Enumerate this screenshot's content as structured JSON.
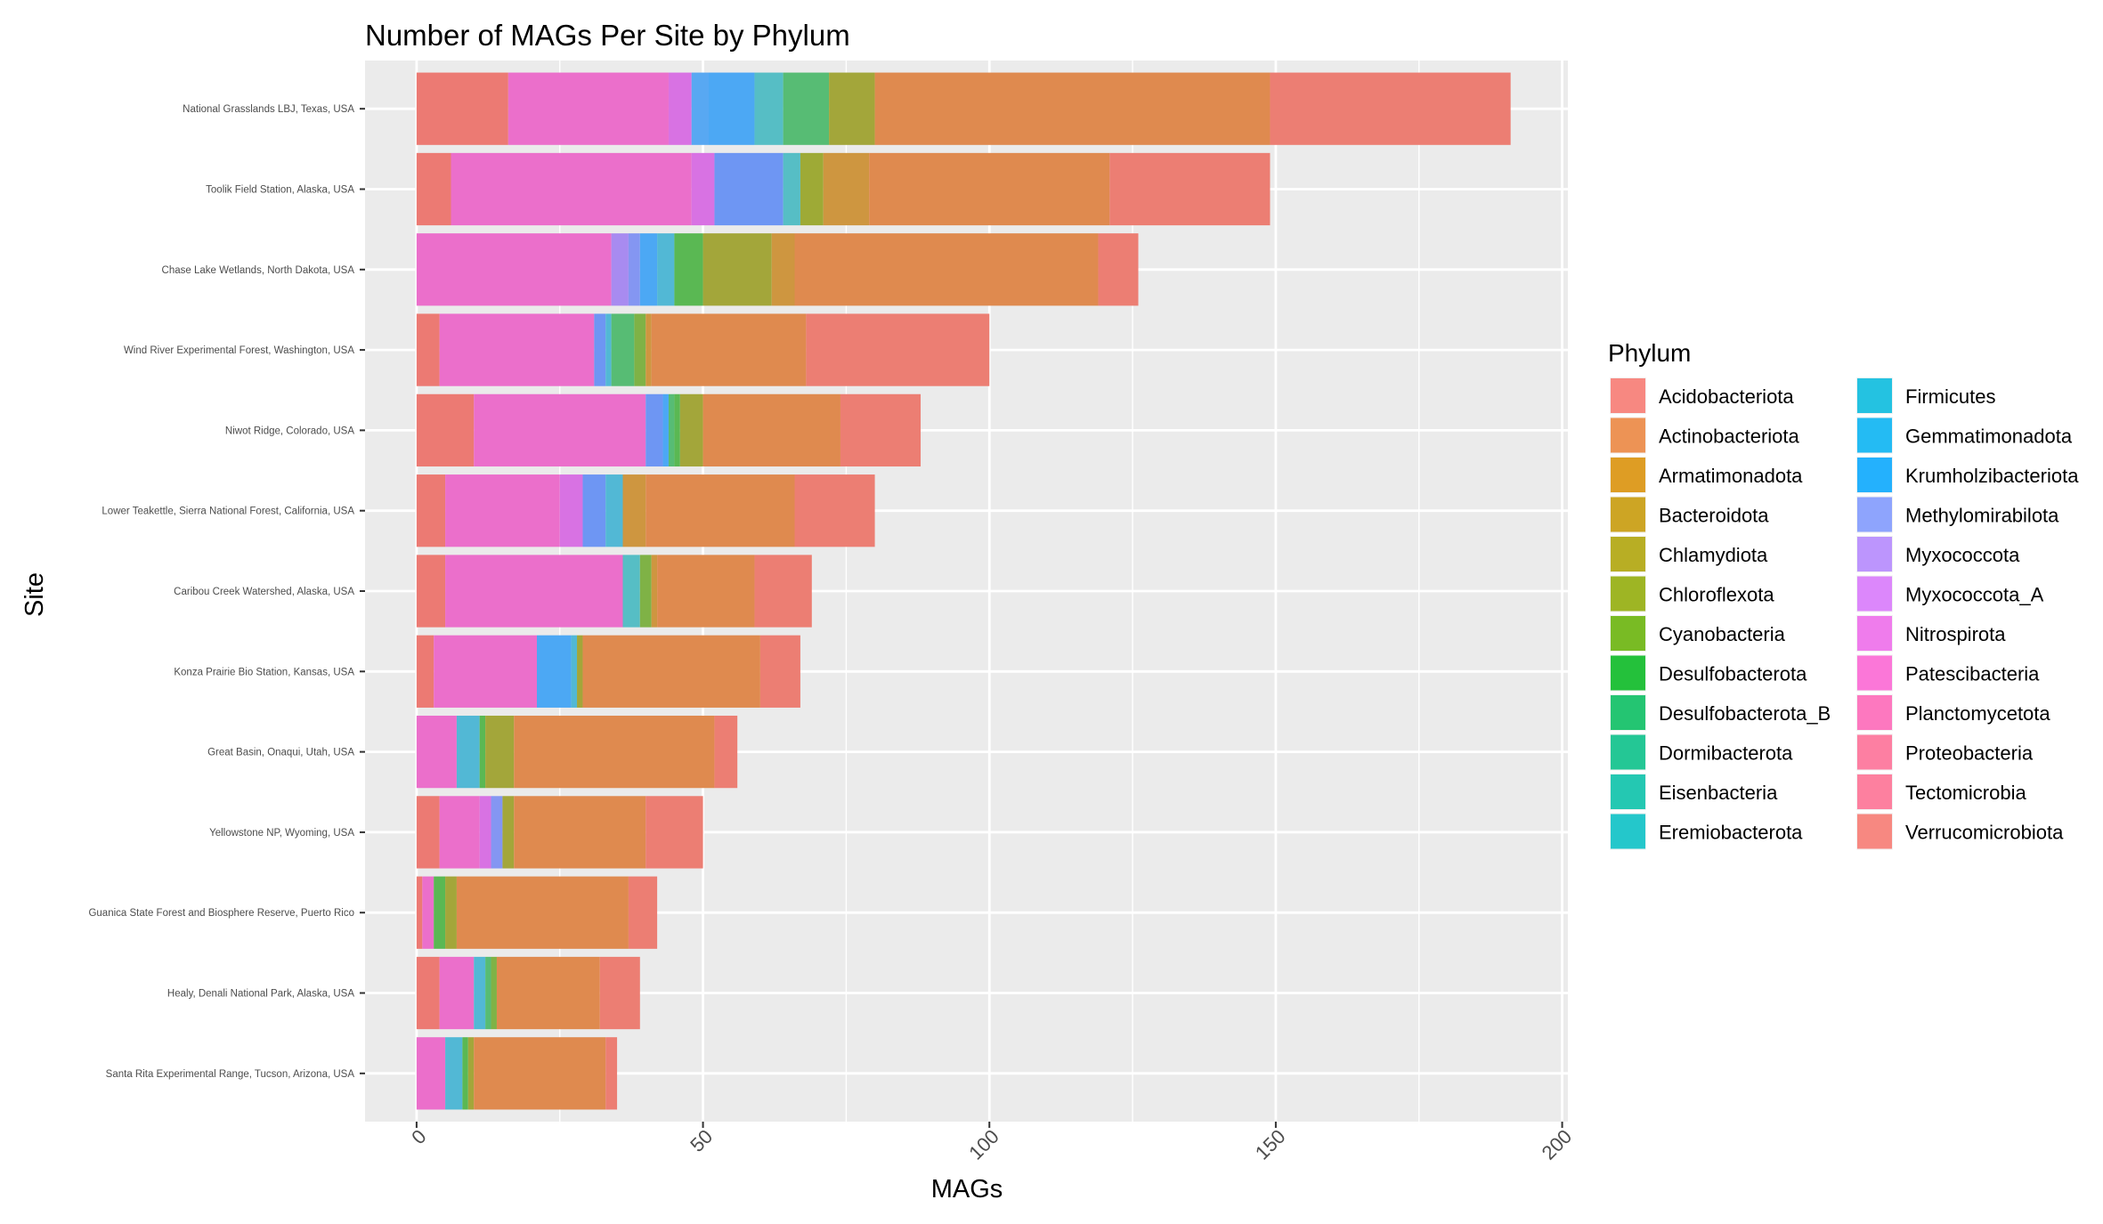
{
  "chart_data": {
    "type": "bar",
    "orientation": "horizontal",
    "stacked": true,
    "title": "Number of MAGs Per Site by Phylum",
    "xlabel": "MAGs",
    "ylabel": "Site",
    "xlim": [
      -9,
      201
    ],
    "x_ticks": [
      "0",
      "50",
      "100",
      "150",
      "200"
    ],
    "grid": true,
    "legend_position": "right",
    "legend": {
      "title": "Phylum",
      "items": [
        {
          "name": "Acidobacteriota",
          "color": "#F8766D"
        },
        {
          "name": "Actinobacteriota",
          "color": "#EC8239"
        },
        {
          "name": "Armatimonadota",
          "color": "#DB8E00"
        },
        {
          "name": "Bacteroidota",
          "color": "#C79800"
        },
        {
          "name": "Chlamydiota",
          "color": "#AEA200"
        },
        {
          "name": "Chloroflexota",
          "color": "#8FAA00"
        },
        {
          "name": "Cyanobacteria",
          "color": "#64B200"
        },
        {
          "name": "Desulfobacterota",
          "color": "#00B81B"
        },
        {
          "name": "Desulfobacterota_B",
          "color": "#00BD5C"
        },
        {
          "name": "Dormibacterota",
          "color": "#00C085"
        },
        {
          "name": "Eisenbacteria",
          "color": "#00C1A7"
        },
        {
          "name": "Eremiobacterota",
          "color": "#00BFC4"
        },
        {
          "name": "Firmicutes",
          "color": "#00BADE"
        },
        {
          "name": "Gemmatimonadota",
          "color": "#00B2F3"
        },
        {
          "name": "Krumholzibacteriota",
          "color": "#00A6FF"
        },
        {
          "name": "Methylomirabilota",
          "color": "#7C96FF"
        },
        {
          "name": "Myxococcota",
          "color": "#B385FF"
        },
        {
          "name": "Myxococcota_A",
          "color": "#D874FD"
        },
        {
          "name": "Nitrospirota",
          "color": "#EF67EB"
        },
        {
          "name": "Patescibacteria",
          "color": "#FD61D3"
        },
        {
          "name": "Planctomycetota",
          "color": "#FF63B6"
        },
        {
          "name": "Proteobacteria",
          "color": "#FF6B94"
        },
        {
          "name": "Tectomicrobia",
          "color": "#FF6C91"
        },
        {
          "name": "Verrucomicrobiota",
          "color": "#F8766D"
        }
      ]
    },
    "sites": [
      {
        "label": "National Grasslands LBJ, Texas, USA",
        "segments": [
          [
            0,
            16,
            "#EC7A73"
          ],
          [
            16,
            44,
            "#EB6FCB"
          ],
          [
            44,
            48,
            "#D872E3"
          ],
          [
            48,
            51,
            "#58A8F2"
          ],
          [
            51,
            59,
            "#4CA8F4"
          ],
          [
            59,
            64,
            "#56BEC5"
          ],
          [
            64,
            72,
            "#57BC74"
          ],
          [
            72,
            80,
            "#A3A63A"
          ],
          [
            80,
            149,
            "#DF8A4F"
          ],
          [
            149,
            191,
            "#EC7E73"
          ]
        ]
      },
      {
        "label": "Toolik Field Station, Alaska, USA",
        "segments": [
          [
            0,
            6,
            "#EC7A73"
          ],
          [
            6,
            48,
            "#EB6FCB"
          ],
          [
            48,
            52,
            "#D872E3"
          ],
          [
            52,
            64,
            "#6E96F3"
          ],
          [
            64,
            67,
            "#56BEC5"
          ],
          [
            67,
            71,
            "#9EAA36"
          ],
          [
            71,
            79,
            "#CE9640"
          ],
          [
            79,
            121,
            "#DF8A4F"
          ],
          [
            121,
            149,
            "#EC7E73"
          ]
        ]
      },
      {
        "label": "Chase Lake Wetlands, North Dakota, USA",
        "segments": [
          [
            0,
            34,
            "#EB6FCB"
          ],
          [
            34,
            37,
            "#A88BF0"
          ],
          [
            37,
            39,
            "#8496F2"
          ],
          [
            39,
            42,
            "#4CA8F4"
          ],
          [
            42,
            45,
            "#52B8D5"
          ],
          [
            45,
            50,
            "#5AB853"
          ],
          [
            50,
            62,
            "#A3A63A"
          ],
          [
            62,
            66,
            "#CE9640"
          ],
          [
            66,
            119,
            "#DF8A4F"
          ],
          [
            119,
            126,
            "#EC7E73"
          ]
        ]
      },
      {
        "label": "Wind River Experimental Forest, Washington, USA",
        "segments": [
          [
            0,
            4,
            "#EC7A73"
          ],
          [
            4,
            31,
            "#EB6FCB"
          ],
          [
            31,
            33,
            "#6E96F3"
          ],
          [
            33,
            34,
            "#52B8D5"
          ],
          [
            34,
            38,
            "#57BC74"
          ],
          [
            38,
            40,
            "#7FB246"
          ],
          [
            40,
            41,
            "#CE9640"
          ],
          [
            41,
            68,
            "#DF8A4F"
          ],
          [
            68,
            100,
            "#EC7E73"
          ]
        ]
      },
      {
        "label": "Niwot Ridge, Colorado, USA",
        "segments": [
          [
            0,
            10,
            "#EC7A73"
          ],
          [
            10,
            40,
            "#EB6FCB"
          ],
          [
            40,
            43,
            "#6E96F3"
          ],
          [
            43,
            44,
            "#4CA8F4"
          ],
          [
            44,
            45,
            "#57BC74"
          ],
          [
            45,
            46,
            "#5AB853"
          ],
          [
            46,
            50,
            "#A3A63A"
          ],
          [
            50,
            74,
            "#DF8A4F"
          ],
          [
            74,
            88,
            "#EC7E73"
          ]
        ]
      },
      {
        "label": "Lower Teakettle, Sierra National Forest, California, USA",
        "segments": [
          [
            0,
            5,
            "#EC7A73"
          ],
          [
            5,
            25,
            "#EB6FCB"
          ],
          [
            25,
            29,
            "#D872E3"
          ],
          [
            29,
            33,
            "#6E96F3"
          ],
          [
            33,
            36,
            "#52B8D5"
          ],
          [
            36,
            40,
            "#CE9640"
          ],
          [
            40,
            66,
            "#DF8A4F"
          ],
          [
            66,
            80,
            "#EC7E73"
          ]
        ]
      },
      {
        "label": "Caribou Creek Watershed, Alaska, USA",
        "segments": [
          [
            0,
            5,
            "#EC7A73"
          ],
          [
            5,
            36,
            "#EB6FCB"
          ],
          [
            36,
            39,
            "#56BEC5"
          ],
          [
            39,
            41,
            "#7FB246"
          ],
          [
            41,
            42,
            "#CE9640"
          ],
          [
            42,
            59,
            "#DF8A4F"
          ],
          [
            59,
            69,
            "#EC7E73"
          ]
        ]
      },
      {
        "label": "Konza Prairie Bio Station, Kansas, USA",
        "segments": [
          [
            0,
            3,
            "#EC7A73"
          ],
          [
            3,
            21,
            "#EB6FCB"
          ],
          [
            21,
            27,
            "#4CA8F4"
          ],
          [
            27,
            28,
            "#52B8D5"
          ],
          [
            28,
            29,
            "#A3A63A"
          ],
          [
            29,
            60,
            "#DF8A4F"
          ],
          [
            60,
            67,
            "#EC7E73"
          ]
        ]
      },
      {
        "label": "Great Basin, Onaqui, Utah, USA",
        "segments": [
          [
            0,
            7,
            "#EB6FCB"
          ],
          [
            7,
            11,
            "#52B8D5"
          ],
          [
            11,
            12,
            "#5AB853"
          ],
          [
            12,
            17,
            "#A3A63A"
          ],
          [
            17,
            52,
            "#DF8A4F"
          ],
          [
            52,
            56,
            "#EC7E73"
          ]
        ]
      },
      {
        "label": "Yellowstone NP, Wyoming, USA",
        "segments": [
          [
            0,
            4,
            "#EC7A73"
          ],
          [
            4,
            11,
            "#EB6FCB"
          ],
          [
            11,
            13,
            "#D872E3"
          ],
          [
            13,
            15,
            "#8496F2"
          ],
          [
            15,
            17,
            "#A3A63A"
          ],
          [
            17,
            40,
            "#DF8A4F"
          ],
          [
            40,
            50,
            "#EC7E73"
          ]
        ]
      },
      {
        "label": "Guanica State Forest and Biosphere Reserve, Puerto Rico",
        "segments": [
          [
            0,
            1,
            "#EC7A73"
          ],
          [
            1,
            3,
            "#EB6FCB"
          ],
          [
            3,
            5,
            "#5AB853"
          ],
          [
            5,
            7,
            "#A3A63A"
          ],
          [
            7,
            37,
            "#DF8A4F"
          ],
          [
            37,
            42,
            "#EC7E73"
          ]
        ]
      },
      {
        "label": "Healy, Denali National Park, Alaska, USA",
        "segments": [
          [
            0,
            4,
            "#EC7A73"
          ],
          [
            4,
            10,
            "#EB6FCB"
          ],
          [
            10,
            12,
            "#52B8D5"
          ],
          [
            12,
            13,
            "#57BC74"
          ],
          [
            13,
            14,
            "#7FB246"
          ],
          [
            14,
            32,
            "#DF8A4F"
          ],
          [
            32,
            39,
            "#EC7E73"
          ]
        ]
      },
      {
        "label": "Santa Rita Experimental Range, Tucson, Arizona, USA",
        "segments": [
          [
            0,
            5,
            "#EB6FCB"
          ],
          [
            5,
            8,
            "#52B8D5"
          ],
          [
            8,
            9,
            "#5AB853"
          ],
          [
            9,
            10,
            "#A3A63A"
          ],
          [
            10,
            33,
            "#DF8A4F"
          ],
          [
            33,
            35,
            "#EC7E73"
          ]
        ]
      }
    ]
  }
}
